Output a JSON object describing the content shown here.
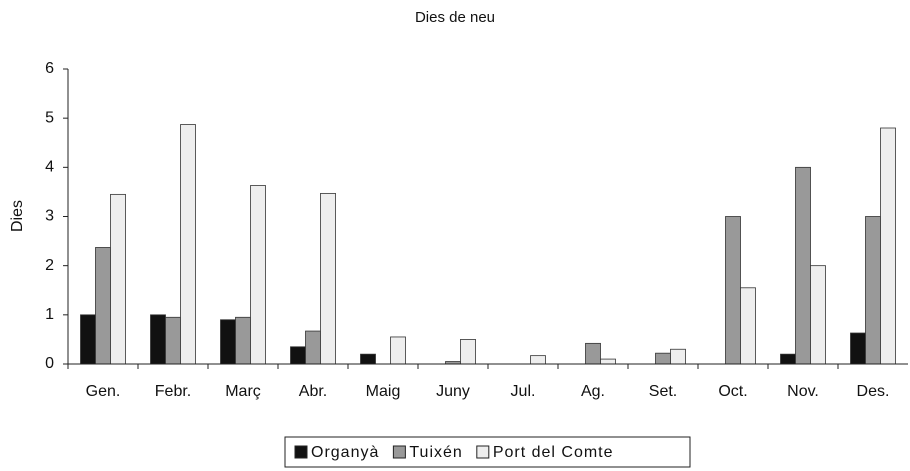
{
  "chart_data": {
    "type": "bar",
    "title": "Dies de neu",
    "y_label": "Dies",
    "categories": [
      "Gen.",
      "Febr.",
      "Març",
      "Abr.",
      "Maig",
      "Juny",
      "Jul.",
      "Ag.",
      "Set.",
      "Oct.",
      "Nov.",
      "Des."
    ],
    "series": [
      {
        "name": "Organyà",
        "color": "#111111",
        "values": [
          1.0,
          1.0,
          0.9,
          0.35,
          0.2,
          0,
          0,
          0,
          0,
          0,
          0.2,
          0.63
        ]
      },
      {
        "name": "Tuixén",
        "color": "#999999",
        "values": [
          2.37,
          0.95,
          0.95,
          0.67,
          0,
          0.05,
          0,
          0.42,
          0.22,
          3.0,
          4.0,
          3.0
        ]
      },
      {
        "name": "Port del Comte",
        "color": "#eeeeee",
        "values": [
          3.45,
          4.87,
          3.63,
          3.47,
          0.55,
          0.5,
          0.17,
          0.1,
          0.3,
          1.55,
          2.0,
          4.8
        ]
      }
    ],
    "ylim": [
      0,
      6
    ],
    "yticks": [
      0,
      1,
      2,
      3,
      4,
      5,
      6
    ],
    "legend": "bottom"
  }
}
